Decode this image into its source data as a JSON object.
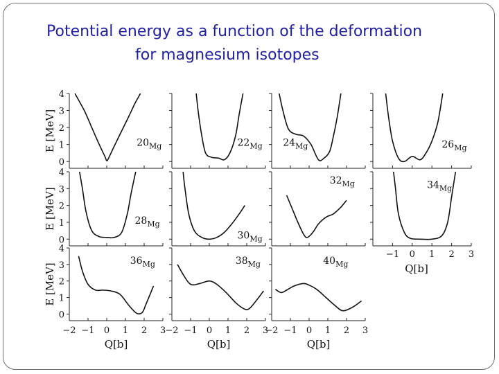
{
  "slide": {
    "title_line1": "Potential energy as a function of the deformation",
    "title_line2": "for magnesium isotopes"
  },
  "chart_data": {
    "type": "line",
    "title": "Potential energy as a function of the deformation for magnesium isotopes",
    "ylabel": "E [MeV]",
    "xlabel": "Q[b]",
    "xlim": [
      -2,
      3
    ],
    "ylim": [
      -0.4,
      4
    ],
    "x_ticks": [
      "−2",
      "−1",
      "0",
      "1",
      "2",
      "3"
    ],
    "y_ticks": [
      "0",
      "1",
      "2",
      "3",
      "4"
    ],
    "panels": [
      {
        "label": "20",
        "suffix": "Mg",
        "x": [
          -1.7,
          -1.2,
          -0.8,
          -0.4,
          -0.1,
          0,
          0.1,
          0.4,
          0.8,
          1.2,
          1.5,
          1.8
        ],
        "y": [
          4.0,
          3.0,
          2.0,
          1.0,
          0.3,
          0.05,
          0.2,
          0.9,
          1.8,
          2.7,
          3.4,
          4.0
        ]
      },
      {
        "label": "22",
        "suffix": "Mg",
        "x": [
          -0.7,
          -0.6,
          -0.4,
          -0.2,
          0.1,
          0.5,
          0.8,
          1.1,
          1.4,
          1.6,
          1.8
        ],
        "y": [
          4.0,
          3.0,
          1.5,
          0.5,
          0.25,
          0.2,
          0.1,
          0.5,
          1.5,
          2.8,
          4.0
        ]
      },
      {
        "label": "24",
        "suffix": "Mg",
        "x": [
          -1.6,
          -1.4,
          -1.1,
          -0.7,
          -0.3,
          0.1,
          0.5,
          0.8,
          1.1,
          1.3,
          1.5,
          1.7
        ],
        "y": [
          4.0,
          3.0,
          1.9,
          1.6,
          1.5,
          1.0,
          0.1,
          0.2,
          0.6,
          1.5,
          2.6,
          4.0
        ]
      },
      {
        "label": "26",
        "suffix": "Mg",
        "x": [
          -1.35,
          -1.2,
          -1.0,
          -0.7,
          -0.4,
          0,
          0.4,
          0.7,
          1.0,
          1.3,
          1.55
        ],
        "y": [
          4.0,
          2.6,
          1.2,
          0.2,
          0.0,
          0.3,
          0.1,
          0.5,
          1.2,
          2.3,
          4.0
        ]
      },
      {
        "label": "28",
        "suffix": "Mg",
        "x": [
          -1.45,
          -1.3,
          -1.1,
          -0.8,
          -0.4,
          0,
          0.4,
          0.8,
          1.1,
          1.3,
          1.55
        ],
        "y": [
          4.0,
          3.0,
          1.6,
          0.5,
          0.15,
          0.1,
          0.1,
          0.4,
          1.5,
          2.7,
          4.0
        ]
      },
      {
        "label": "30",
        "suffix": "Mg",
        "x": [
          -1.4,
          -1.3,
          -1.1,
          -0.8,
          -0.4,
          0,
          0.4,
          0.8,
          1.2,
          1.6,
          1.9
        ],
        "y": [
          4.0,
          3.0,
          1.5,
          0.5,
          0.1,
          0.0,
          0.1,
          0.4,
          0.9,
          1.5,
          2.0
        ]
      },
      {
        "label": "32",
        "suffix": "Mg",
        "x": [
          -1.2,
          -0.9,
          -0.6,
          -0.3,
          -0.1,
          0.2,
          0.5,
          0.9,
          1.3,
          1.7,
          2.0
        ],
        "y": [
          2.6,
          1.8,
          1.0,
          0.3,
          0.1,
          0.4,
          0.9,
          1.3,
          1.5,
          1.9,
          2.3
        ]
      },
      {
        "label": "34",
        "suffix": "Mg",
        "x": [
          -0.95,
          -0.85,
          -0.7,
          -0.4,
          -0.1,
          0.4,
          1.0,
          1.5,
          1.8,
          2.0,
          2.2
        ],
        "y": [
          4.0,
          3.0,
          1.5,
          0.4,
          0.05,
          0.0,
          0.0,
          0.2,
          1.0,
          2.5,
          4.0
        ]
      },
      {
        "label": "36",
        "suffix": "Mg",
        "x": [
          -1.5,
          -1.3,
          -1.0,
          -0.6,
          -0.2,
          0.2,
          0.7,
          1.2,
          1.6,
          1.9,
          2.1,
          2.5
        ],
        "y": [
          3.5,
          2.6,
          1.8,
          1.45,
          1.45,
          1.4,
          1.2,
          0.5,
          0.05,
          0.1,
          0.6,
          1.7
        ]
      },
      {
        "label": "38",
        "suffix": "Mg",
        "x": [
          -1.7,
          -1.4,
          -1.0,
          -0.5,
          0,
          0.4,
          0.9,
          1.4,
          1.8,
          2.1,
          2.5,
          2.9
        ],
        "y": [
          3.0,
          2.4,
          1.8,
          1.85,
          2.0,
          1.8,
          1.3,
          0.7,
          0.35,
          0.3,
          0.8,
          1.4
        ]
      },
      {
        "label": "40",
        "suffix": "Mg",
        "x": [
          -1.8,
          -1.5,
          -1.2,
          -0.8,
          -0.3,
          0,
          0.4,
          0.9,
          1.4,
          1.8,
          2.3,
          2.8
        ],
        "y": [
          1.5,
          1.3,
          1.45,
          1.7,
          1.85,
          1.75,
          1.5,
          1.0,
          0.5,
          0.2,
          0.4,
          0.8
        ]
      }
    ]
  }
}
